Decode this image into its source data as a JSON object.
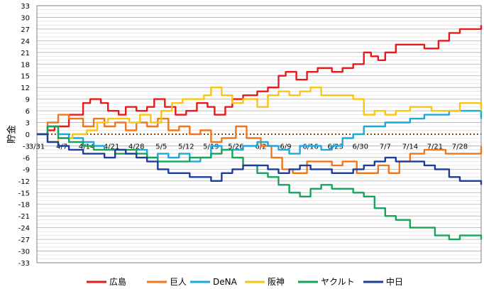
{
  "chart_data": {
    "type": "line",
    "ylabel": "貯金",
    "ylim": [
      -33,
      33
    ],
    "yticks": [
      33,
      30,
      27,
      24,
      21,
      18,
      15,
      12,
      9,
      6,
      3,
      0,
      -3,
      -6,
      -9,
      -12,
      -15,
      -18,
      -21,
      -24,
      -27,
      -30,
      -33
    ],
    "x_start": "3/31",
    "x_end": "8/3",
    "x_tick_labels": [
      "3/31",
      "4/7",
      "4/14",
      "4/21",
      "4/28",
      "5/5",
      "5/12",
      "5/19",
      "5/26",
      "6/2",
      "6/9",
      "6/16",
      "6/23",
      "6/30",
      "7/7",
      "7/14",
      "7/21",
      "7/28"
    ],
    "zero_line": "dotted",
    "grid": "horizontal",
    "legend_position": "bottom",
    "series": [
      {
        "name": "広島",
        "color": "#e8191b",
        "x": [
          "3/31",
          "4/3",
          "4/5",
          "4/9",
          "4/13",
          "4/15",
          "4/18",
          "4/20",
          "4/23",
          "4/25",
          "4/28",
          "5/1",
          "5/3",
          "5/6",
          "5/9",
          "5/12",
          "5/15",
          "5/18",
          "5/20",
          "5/23",
          "5/25",
          "5/28",
          "6/1",
          "6/4",
          "6/7",
          "6/9",
          "6/12",
          "6/15",
          "6/18",
          "6/22",
          "6/25",
          "6/28",
          "7/1",
          "7/3",
          "7/5",
          "7/7",
          "7/10",
          "7/14",
          "7/18",
          "7/22",
          "7/25",
          "7/28",
          "8/3"
        ],
        "y": [
          0,
          1,
          2,
          5,
          8,
          9,
          8,
          6,
          5,
          7,
          6,
          7,
          9,
          7,
          5,
          6,
          8,
          7,
          5,
          7,
          9,
          10,
          11,
          12,
          15,
          16,
          14,
          16,
          17,
          16,
          17,
          18,
          21,
          20,
          19,
          21,
          23,
          23,
          22,
          24,
          26,
          27,
          28
        ]
      },
      {
        "name": "巨人",
        "color": "#f0761c",
        "x": [
          "3/31",
          "4/3",
          "4/6",
          "4/9",
          "4/13",
          "4/16",
          "4/19",
          "4/22",
          "4/25",
          "4/28",
          "5/1",
          "5/4",
          "5/7",
          "5/10",
          "5/13",
          "5/16",
          "5/19",
          "5/22",
          "5/26",
          "5/29",
          "6/2",
          "6/5",
          "6/8",
          "6/11",
          "6/15",
          "6/18",
          "6/22",
          "6/25",
          "6/29",
          "7/2",
          "7/5",
          "7/8",
          "7/11",
          "7/14",
          "7/18",
          "7/21",
          "7/24",
          "8/3"
        ],
        "y": [
          0,
          3,
          5,
          4,
          2,
          4,
          2,
          3,
          1,
          3,
          2,
          4,
          1,
          2,
          0,
          1,
          -2,
          -1,
          2,
          -1,
          -3,
          -6,
          -9,
          -10,
          -7,
          -7,
          -8,
          -7,
          -10,
          -10,
          -8,
          -10,
          -7,
          -5,
          -4,
          -4,
          -5,
          -3
        ]
      },
      {
        "name": "DeNA",
        "color": "#1ba7df",
        "x": [
          "3/31",
          "4/3",
          "4/6",
          "4/9",
          "4/13",
          "4/16",
          "4/19",
          "4/22",
          "4/25",
          "4/28",
          "5/1",
          "5/4",
          "5/7",
          "5/10",
          "5/13",
          "5/16",
          "5/19",
          "5/22",
          "5/25",
          "5/28",
          "6/1",
          "6/4",
          "6/7",
          "6/10",
          "6/13",
          "6/16",
          "6/19",
          "6/22",
          "6/25",
          "6/28",
          "7/1",
          "7/4",
          "7/7",
          "7/11",
          "7/14",
          "7/18",
          "7/21",
          "7/25",
          "7/28",
          "8/3"
        ],
        "y": [
          0,
          2,
          0,
          -1,
          -2,
          -3,
          -4,
          -4,
          -5,
          -4,
          -6,
          -5,
          -6,
          -5,
          -7,
          -6,
          -3,
          -4,
          -4,
          -3,
          -2,
          -3,
          -4,
          -5,
          -3,
          -3,
          -4,
          -3,
          -1,
          0,
          2,
          2,
          3,
          3,
          4,
          5,
          5,
          6,
          6,
          4
        ]
      },
      {
        "name": "阪神",
        "color": "#fbc410",
        "x": [
          "3/31",
          "4/3",
          "4/6",
          "4/10",
          "4/14",
          "4/17",
          "4/20",
          "4/23",
          "4/26",
          "4/29",
          "5/2",
          "5/5",
          "5/8",
          "5/11",
          "5/14",
          "5/17",
          "5/19",
          "5/22",
          "5/25",
          "5/28",
          "6/1",
          "6/4",
          "6/7",
          "6/10",
          "6/13",
          "6/16",
          "6/19",
          "6/22",
          "6/25",
          "6/28",
          "7/1",
          "7/4",
          "7/7",
          "7/10",
          "7/14",
          "7/17",
          "7/20",
          "7/24",
          "7/28",
          "8/3"
        ],
        "y": [
          0,
          -2,
          -1,
          0,
          1,
          3,
          4,
          4,
          3,
          5,
          3,
          6,
          8,
          9,
          9,
          10,
          12,
          10,
          8,
          9,
          7,
          10,
          11,
          10,
          11,
          12,
          10,
          10,
          10,
          9,
          5,
          6,
          5,
          6,
          7,
          7,
          6,
          6,
          8,
          6
        ]
      },
      {
        "name": "ヤクルト",
        "color": "#16a35a",
        "x": [
          "3/31",
          "4/3",
          "4/6",
          "4/9",
          "4/13",
          "4/16",
          "4/19",
          "4/22",
          "4/25",
          "4/28",
          "5/1",
          "5/4",
          "5/7",
          "5/10",
          "5/13",
          "5/16",
          "5/19",
          "5/22",
          "5/25",
          "5/28",
          "6/1",
          "6/4",
          "6/7",
          "6/10",
          "6/13",
          "6/16",
          "6/19",
          "6/22",
          "6/25",
          "6/28",
          "7/1",
          "7/4",
          "7/7",
          "7/10",
          "7/14",
          "7/18",
          "7/21",
          "7/25",
          "7/28",
          "8/3"
        ],
        "y": [
          0,
          2,
          -1,
          -2,
          -3,
          -4,
          -4,
          -5,
          -4,
          -5,
          -6,
          -7,
          -7,
          -7,
          -6,
          -6,
          -5,
          -4,
          -6,
          -8,
          -10,
          -11,
          -13,
          -15,
          -16,
          -14,
          -13,
          -14,
          -14,
          -15,
          -16,
          -19,
          -21,
          -22,
          -24,
          -24,
          -26,
          -27,
          -26,
          -27
        ]
      },
      {
        "name": "中日",
        "color": "#1e3c9b",
        "x": [
          "3/31",
          "4/3",
          "4/6",
          "4/9",
          "4/13",
          "4/16",
          "4/19",
          "4/22",
          "4/25",
          "4/28",
          "5/1",
          "5/4",
          "5/7",
          "5/10",
          "5/13",
          "5/16",
          "5/19",
          "5/22",
          "5/25",
          "5/28",
          "6/1",
          "6/4",
          "6/7",
          "6/10",
          "6/13",
          "6/16",
          "6/19",
          "6/22",
          "6/25",
          "6/28",
          "7/1",
          "7/4",
          "7/7",
          "7/10",
          "7/14",
          "7/18",
          "7/21",
          "7/25",
          "7/28",
          "8/3"
        ],
        "y": [
          0,
          -2,
          -3,
          -4,
          -5,
          -5,
          -6,
          -4,
          -5,
          -6,
          -7,
          -9,
          -10,
          -10,
          -11,
          -11,
          -12,
          -10,
          -9,
          -8,
          -8,
          -9,
          -10,
          -9,
          -8,
          -9,
          -9,
          -10,
          -10,
          -9,
          -8,
          -7,
          -6,
          -7,
          -7,
          -8,
          -9,
          -11,
          -12,
          -13
        ]
      }
    ]
  }
}
